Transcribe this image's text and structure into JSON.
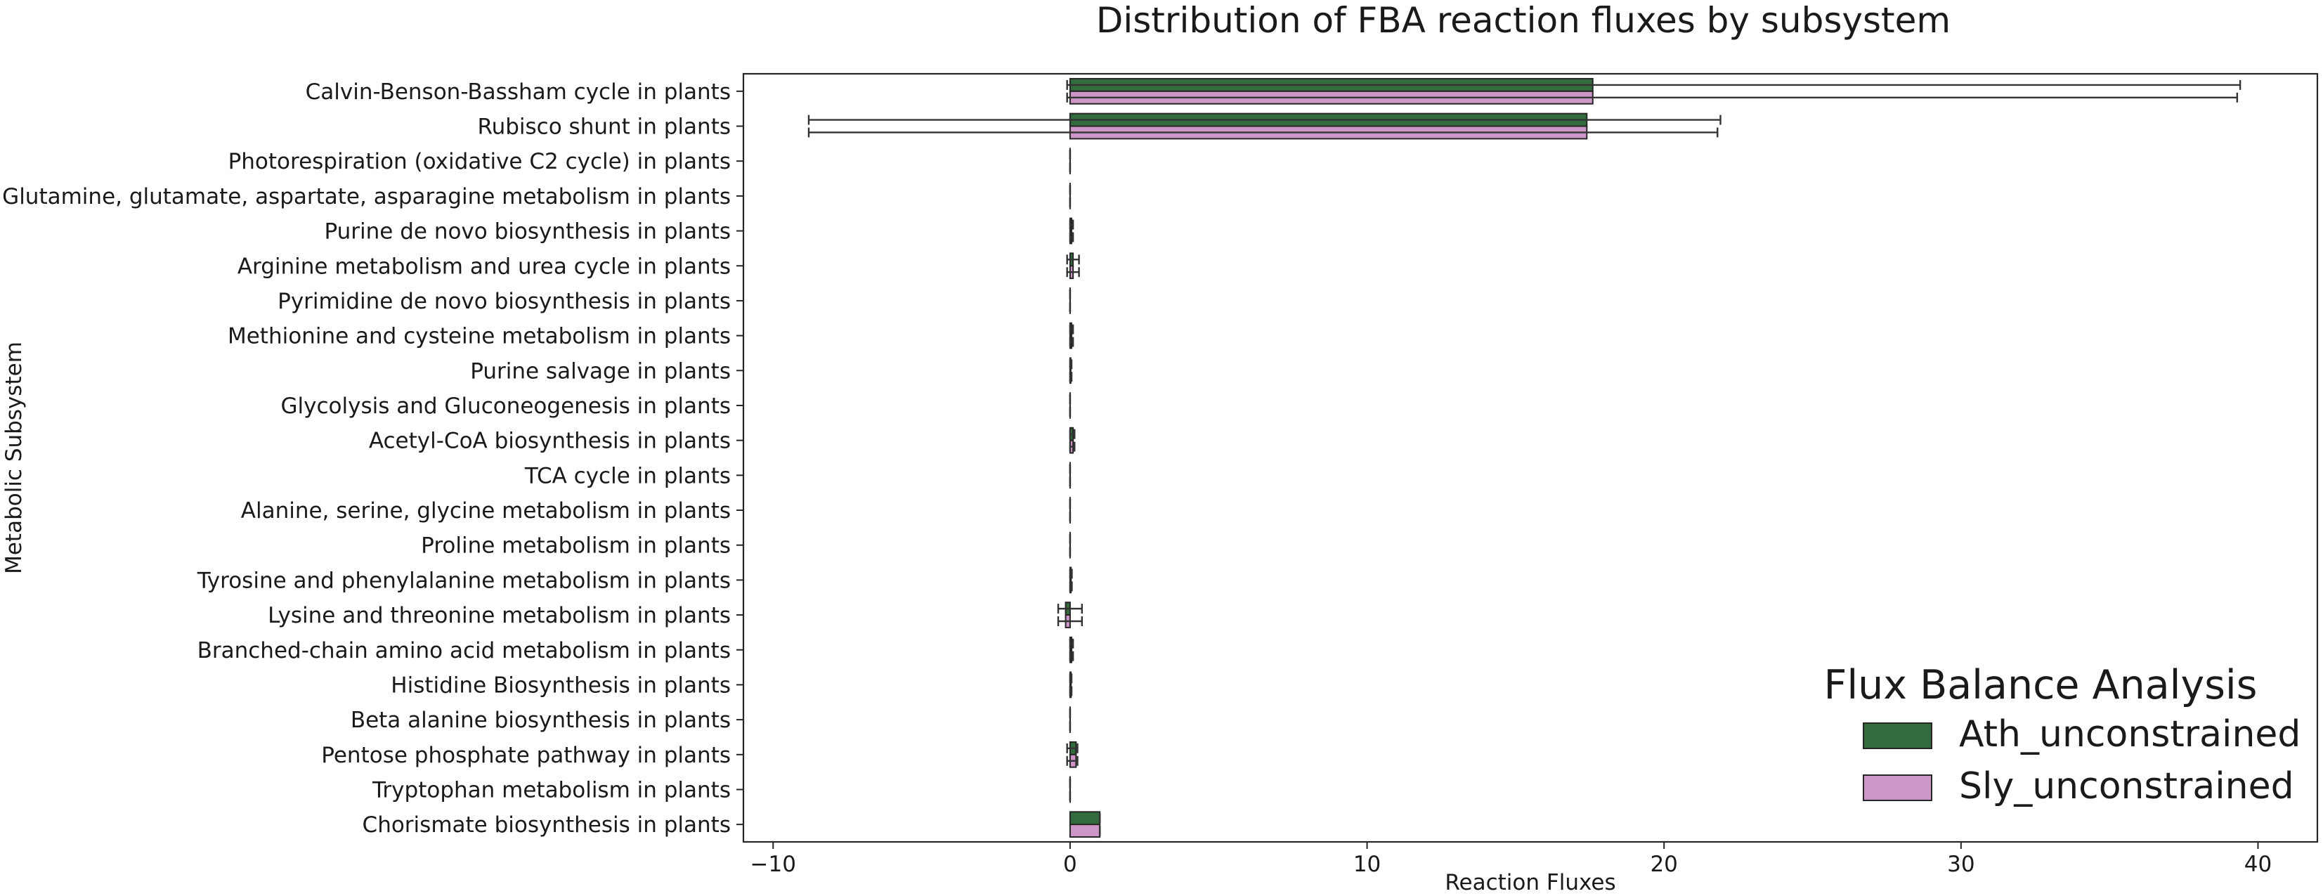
{
  "chart_data": {
    "type": "bar",
    "orientation": "horizontal",
    "title": "Distribution of FBA reaction fluxes by subsystem",
    "xlabel": "Reaction Fluxes",
    "ylabel": "Metabolic Subsystem",
    "xlim": [
      -11,
      42
    ],
    "xticks": [
      -10,
      0,
      10,
      20,
      30,
      40
    ],
    "xtick_labels": [
      "−10",
      "0",
      "10",
      "20",
      "30",
      "40"
    ],
    "grid": false,
    "error_bars": true,
    "legend": {
      "title": "Flux Balance Analysis",
      "position": "lower-right"
    },
    "categories": [
      "Calvin-Benson-Bassham cycle in plants",
      "Rubisco shunt in plants",
      "Photorespiration (oxidative C2 cycle) in plants",
      "Glutamine, glutamate, aspartate, asparagine metabolism in plants",
      "Purine de novo biosynthesis in plants",
      "Arginine metabolism and urea cycle in plants",
      "Pyrimidine de novo biosynthesis in plants",
      "Methionine and cysteine metabolism in plants",
      "Purine salvage in plants",
      "Glycolysis and Gluconeogenesis in plants",
      "Acetyl-CoA biosynthesis in plants",
      "TCA cycle in plants",
      "Alanine, serine, glycine metabolism in plants",
      "Proline metabolism in plants",
      "Tyrosine and phenylalanine metabolism in plants",
      "Lysine and threonine metabolism in plants",
      "Branched-chain amino acid metabolism in plants",
      "Histidine Biosynthesis in plants",
      "Beta alanine biosynthesis in plants",
      "Pentose phosphate pathway in plants",
      "Tryptophan metabolism in plants",
      "Chorismate biosynthesis in plants"
    ],
    "series": [
      {
        "name": "Ath_unconstrained",
        "color": "#336b3d",
        "values": [
          17.6,
          17.4,
          0.0,
          0.0,
          0.05,
          0.1,
          0.0,
          0.05,
          0.02,
          0.0,
          0.1,
          0.0,
          0.0,
          0.0,
          0.03,
          -0.15,
          0.05,
          0.03,
          0.0,
          0.2,
          0.0,
          1.0
        ],
        "err_low": [
          -0.1,
          -8.8,
          0.0,
          0.0,
          0.0,
          -0.1,
          0.0,
          0.0,
          0.0,
          0.0,
          0.0,
          0.0,
          0.0,
          0.0,
          0.0,
          -0.4,
          0.0,
          0.0,
          0.0,
          -0.1,
          0.0,
          1.0
        ],
        "err_high": [
          39.4,
          21.9,
          0.0,
          0.0,
          0.1,
          0.3,
          0.0,
          0.1,
          0.05,
          0.0,
          0.15,
          0.0,
          0.0,
          0.0,
          0.06,
          0.4,
          0.1,
          0.05,
          0.0,
          0.25,
          0.0,
          1.0
        ]
      },
      {
        "name": "Sly_unconstrained",
        "color": "#cc96c6",
        "values": [
          17.6,
          17.4,
          0.0,
          0.0,
          0.05,
          0.1,
          0.0,
          0.05,
          0.02,
          0.0,
          0.1,
          0.0,
          0.0,
          0.0,
          0.03,
          -0.15,
          0.05,
          0.03,
          0.0,
          0.2,
          0.0,
          1.0
        ],
        "err_low": [
          -0.1,
          -8.8,
          0.0,
          0.0,
          0.0,
          -0.1,
          0.0,
          0.0,
          0.0,
          0.0,
          0.0,
          0.0,
          0.0,
          0.0,
          0.0,
          -0.4,
          0.0,
          0.0,
          0.0,
          -0.1,
          0.0,
          1.0
        ],
        "err_high": [
          39.3,
          21.8,
          0.0,
          0.0,
          0.1,
          0.3,
          0.0,
          0.1,
          0.05,
          0.0,
          0.15,
          0.0,
          0.0,
          0.0,
          0.06,
          0.4,
          0.1,
          0.05,
          0.0,
          0.25,
          0.0,
          1.0
        ]
      }
    ]
  }
}
